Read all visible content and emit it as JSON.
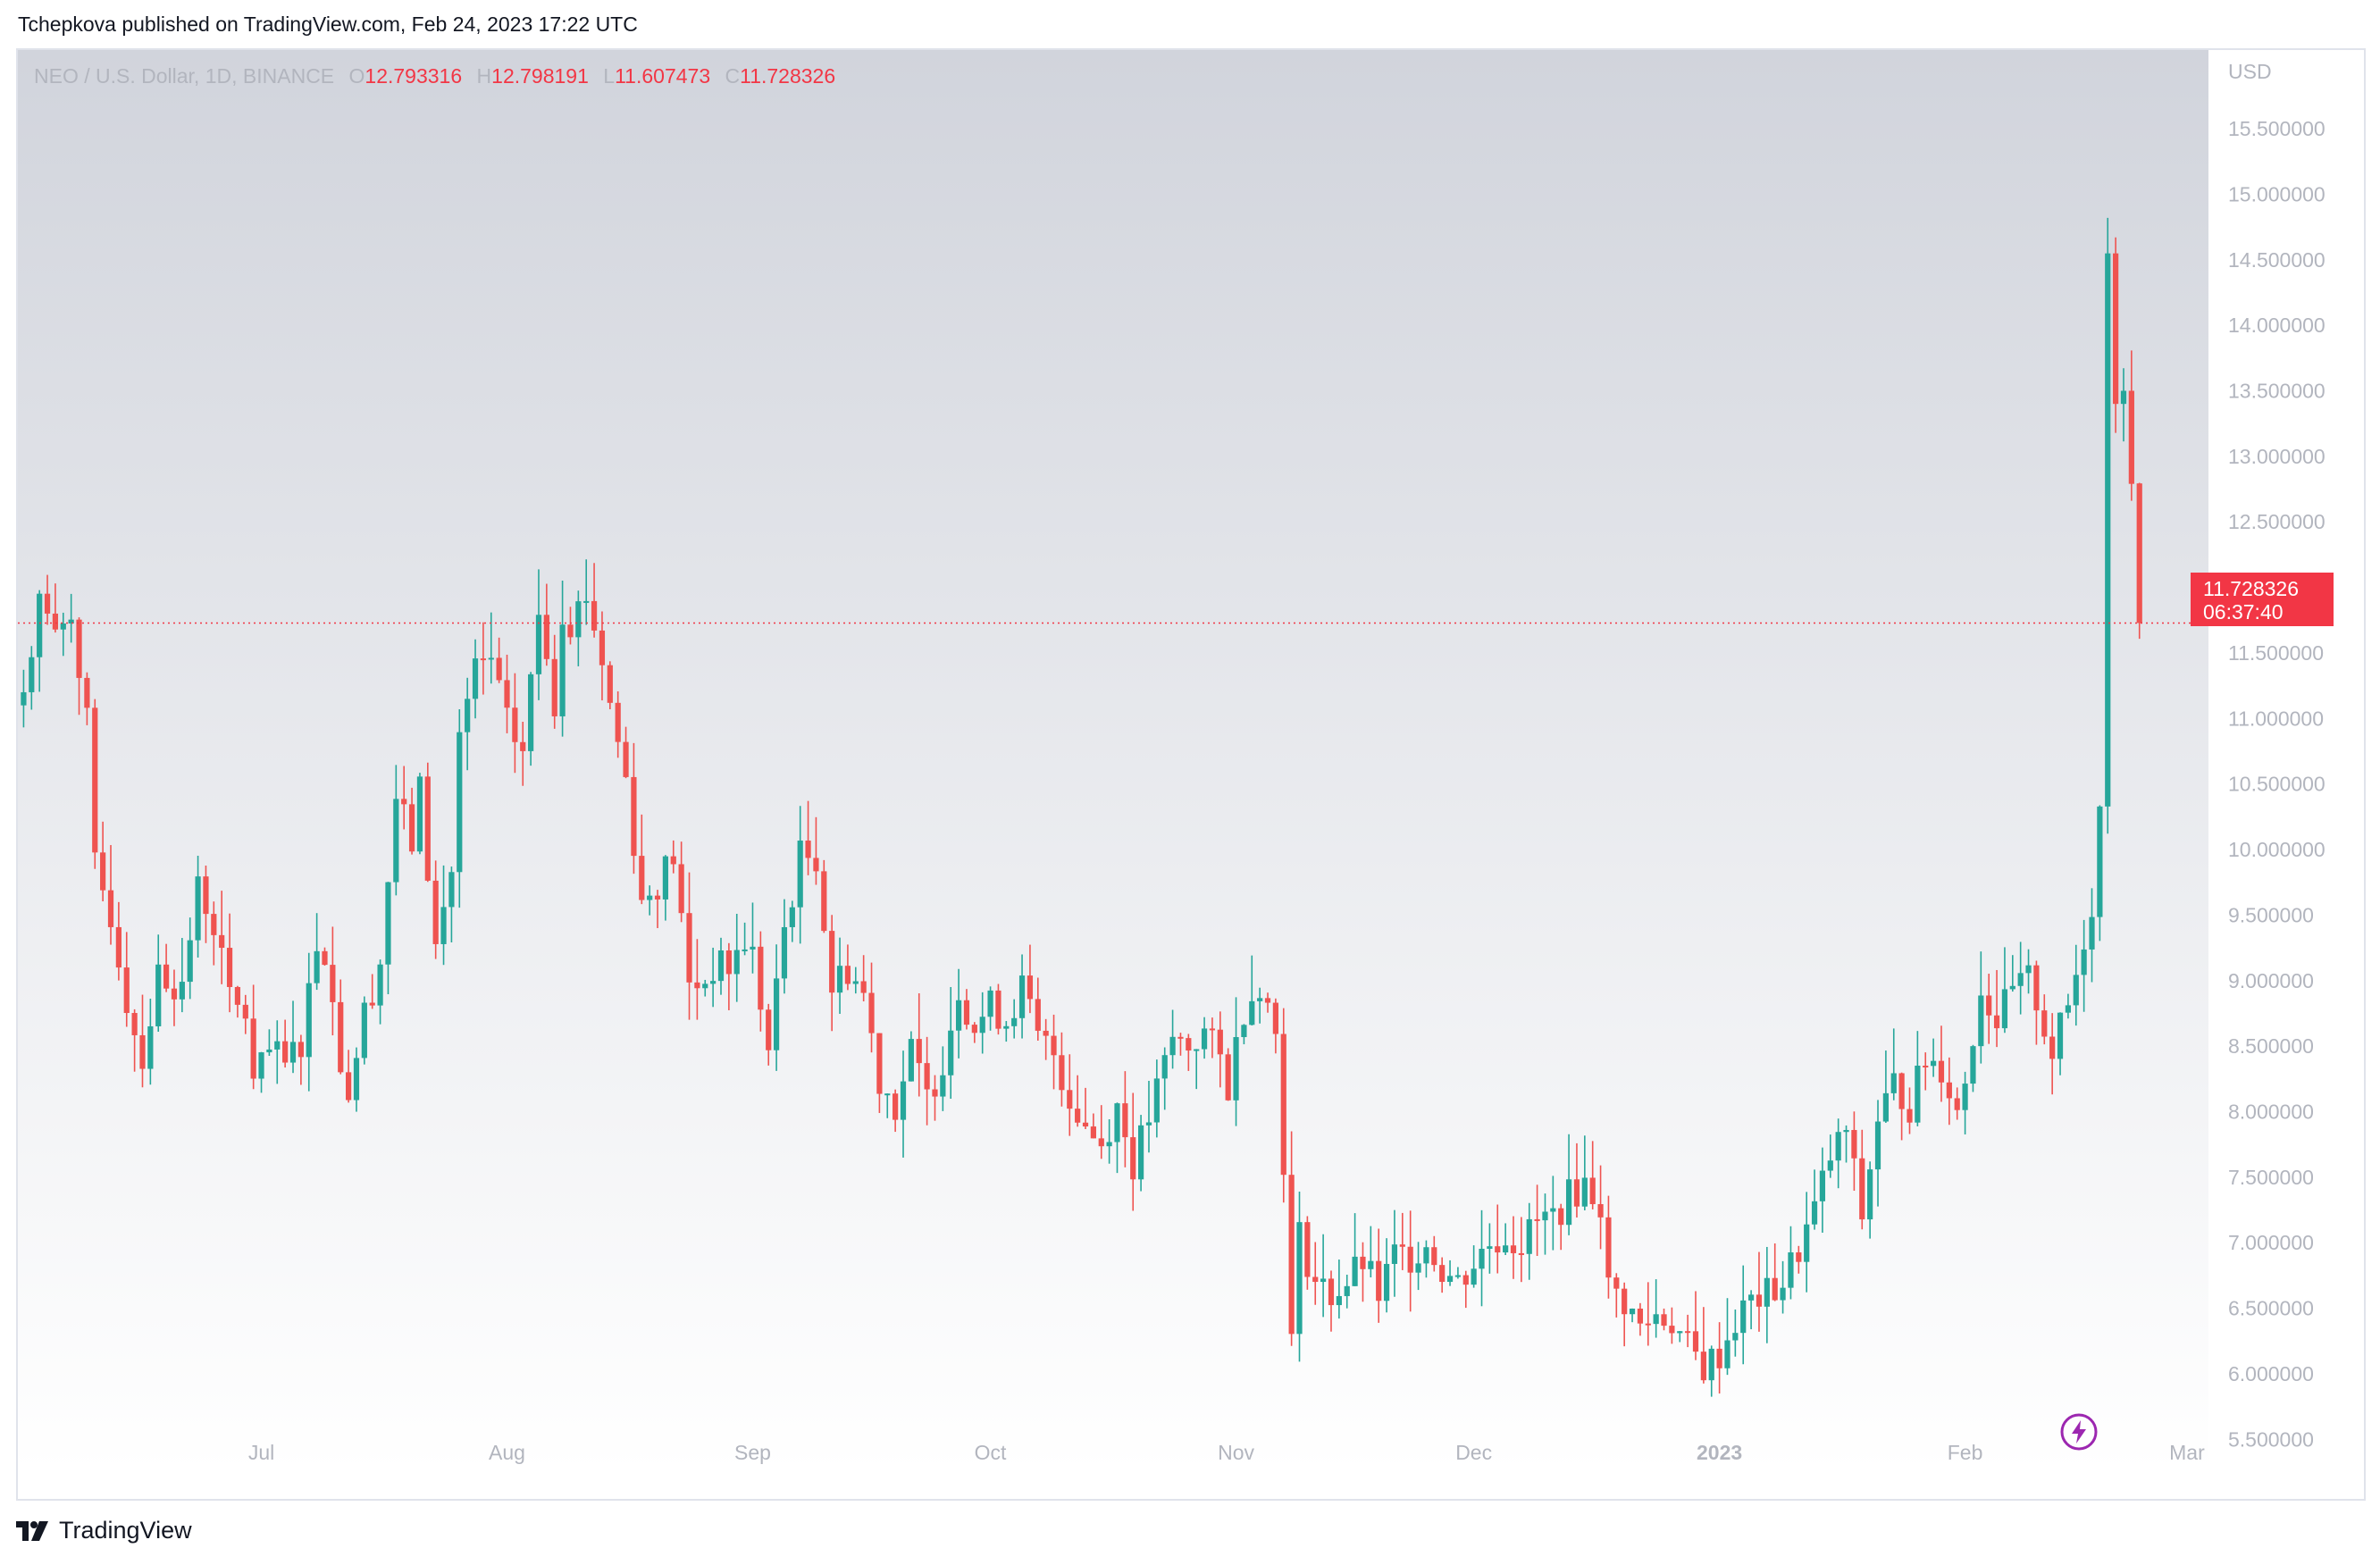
{
  "header": {
    "publish_line": "Tchepkova published on TradingView.com, Feb 24, 2023 17:22 UTC"
  },
  "legend": {
    "symbol": "NEO / U.S. Dollar, 1D, BINANCE",
    "open_label": "O",
    "open": "12.793316",
    "high_label": "H",
    "high": "12.798191",
    "low_label": "L",
    "low": "11.607473",
    "close_label": "C",
    "close": "11.728326"
  },
  "last_price": {
    "price": "11.728326",
    "countdown": "06:37:40"
  },
  "footer": {
    "brand": "TradingView"
  },
  "colors": {
    "up": "#26a69a",
    "down": "#ef5350",
    "price_line": "#f23645",
    "axis_text": "#b2b5be",
    "lightning": "#9c27b0"
  },
  "icons": {
    "lightning": "lightning-icon",
    "logo": "tradingview-logo-icon"
  },
  "chart_data": {
    "type": "candlestick",
    "currency": "USD",
    "ylim": [
      5.25,
      16.1
    ],
    "y_ticks": [
      "5.500000",
      "6.000000",
      "6.500000",
      "7.000000",
      "7.500000",
      "8.000000",
      "8.500000",
      "9.000000",
      "9.500000",
      "10.000000",
      "10.500000",
      "11.000000",
      "11.500000",
      "12.000000",
      "12.500000",
      "13.000000",
      "13.500000",
      "14.000000",
      "14.500000",
      "15.000000",
      "15.500000"
    ],
    "x_ticks": [
      {
        "label": "Jul",
        "day": 30,
        "bold": false
      },
      {
        "label": "Aug",
        "day": 61,
        "bold": false
      },
      {
        "label": "Sep",
        "day": 92,
        "bold": false
      },
      {
        "label": "Oct",
        "day": 122,
        "bold": false
      },
      {
        "label": "Nov",
        "day": 153,
        "bold": false
      },
      {
        "label": "Dec",
        "day": 183,
        "bold": false
      },
      {
        "label": "2023",
        "day": 214,
        "bold": true
      },
      {
        "label": "Feb",
        "day": 245,
        "bold": false
      },
      {
        "label": "Mar",
        "day": 273,
        "bold": false
      }
    ],
    "grid": false,
    "anchors": [
      [
        0,
        11.2
      ],
      [
        2,
        11.95
      ],
      [
        4,
        11.6
      ],
      [
        6,
        11.85
      ],
      [
        8,
        10.95
      ],
      [
        9,
        9.85
      ],
      [
        11,
        9.5
      ],
      [
        13,
        8.85
      ],
      [
        15,
        8.4
      ],
      [
        17,
        9.05
      ],
      [
        20,
        8.95
      ],
      [
        22,
        9.7
      ],
      [
        24,
        9.45
      ],
      [
        26,
        8.85
      ],
      [
        28,
        8.75
      ],
      [
        29,
        8.2
      ],
      [
        31,
        8.45
      ],
      [
        33,
        8.35
      ],
      [
        35,
        8.55
      ],
      [
        37,
        9.3
      ],
      [
        38,
        9.25
      ],
      [
        40,
        8.4
      ],
      [
        41,
        8.15
      ],
      [
        43,
        8.75
      ],
      [
        45,
        9.15
      ],
      [
        47,
        10.4
      ],
      [
        49,
        10.05
      ],
      [
        50,
        10.45
      ],
      [
        52,
        9.25
      ],
      [
        54,
        9.85
      ],
      [
        55,
        10.85
      ],
      [
        57,
        11.35
      ],
      [
        59,
        11.45
      ],
      [
        61,
        10.95
      ],
      [
        63,
        10.75
      ],
      [
        65,
        11.8
      ],
      [
        66,
        11.55
      ],
      [
        67,
        11.1
      ],
      [
        68,
        11.85
      ],
      [
        69,
        11.75
      ],
      [
        71,
        11.95
      ],
      [
        73,
        11.45
      ],
      [
        74,
        11.1
      ],
      [
        76,
        10.55
      ],
      [
        78,
        9.6
      ],
      [
        80,
        9.75
      ],
      [
        82,
        9.95
      ],
      [
        84,
        8.95
      ],
      [
        86,
        9.0
      ],
      [
        87,
        9.1
      ],
      [
        89,
        9.1
      ],
      [
        91,
        9.3
      ],
      [
        92,
        9.2
      ],
      [
        94,
        8.45
      ],
      [
        96,
        9.4
      ],
      [
        98,
        9.95
      ],
      [
        100,
        9.95
      ],
      [
        102,
        8.95
      ],
      [
        104,
        9.1
      ],
      [
        106,
        8.9
      ],
      [
        108,
        8.25
      ],
      [
        110,
        8.05
      ],
      [
        112,
        8.45
      ],
      [
        114,
        8.1
      ],
      [
        116,
        8.4
      ],
      [
        118,
        8.95
      ],
      [
        120,
        8.65
      ],
      [
        122,
        8.8
      ],
      [
        124,
        8.7
      ],
      [
        126,
        8.95
      ],
      [
        128,
        8.55
      ],
      [
        130,
        8.45
      ],
      [
        132,
        8.1
      ],
      [
        134,
        7.9
      ],
      [
        136,
        7.75
      ],
      [
        138,
        8.05
      ],
      [
        140,
        7.6
      ],
      [
        142,
        7.95
      ],
      [
        145,
        8.55
      ],
      [
        147,
        8.5
      ],
      [
        149,
        8.6
      ],
      [
        151,
        8.4
      ],
      [
        152,
        8.2
      ],
      [
        154,
        8.8
      ],
      [
        156,
        9.0
      ],
      [
        158,
        8.6
      ],
      [
        159,
        7.65
      ],
      [
        160,
        6.25
      ],
      [
        161,
        7.05
      ],
      [
        163,
        6.7
      ],
      [
        165,
        6.6
      ],
      [
        167,
        6.7
      ],
      [
        169,
        6.85
      ],
      [
        171,
        6.6
      ],
      [
        173,
        6.9
      ],
      [
        175,
        6.9
      ],
      [
        177,
        7.0
      ],
      [
        179,
        6.8
      ],
      [
        181,
        6.7
      ],
      [
        183,
        6.85
      ],
      [
        185,
        7.0
      ],
      [
        187,
        7.05
      ],
      [
        189,
        7.0
      ],
      [
        191,
        7.15
      ],
      [
        193,
        7.2
      ],
      [
        195,
        7.35
      ],
      [
        197,
        7.45
      ],
      [
        199,
        7.3
      ],
      [
        200,
        6.65
      ],
      [
        202,
        6.55
      ],
      [
        204,
        6.35
      ],
      [
        206,
        6.45
      ],
      [
        208,
        6.4
      ],
      [
        210,
        6.2
      ],
      [
        212,
        6.05
      ],
      [
        214,
        6.15
      ],
      [
        216,
        6.4
      ],
      [
        218,
        6.55
      ],
      [
        220,
        6.6
      ],
      [
        222,
        6.7
      ],
      [
        224,
        6.95
      ],
      [
        226,
        7.25
      ],
      [
        228,
        7.65
      ],
      [
        230,
        7.85
      ],
      [
        232,
        7.2
      ],
      [
        234,
        7.95
      ],
      [
        236,
        8.2
      ],
      [
        238,
        8.05
      ],
      [
        240,
        8.4
      ],
      [
        242,
        8.35
      ],
      [
        244,
        8.0
      ],
      [
        245,
        8.25
      ],
      [
        247,
        8.95
      ],
      [
        249,
        8.7
      ],
      [
        251,
        8.9
      ],
      [
        253,
        9.0
      ],
      [
        254,
        8.85
      ],
      [
        256,
        8.45
      ],
      [
        258,
        8.8
      ],
      [
        259,
        9.05
      ],
      [
        261,
        9.6
      ],
      [
        262,
        10.3
      ],
      [
        263,
        14.65
      ],
      [
        264,
        13.4
      ],
      [
        265,
        13.5
      ],
      [
        266,
        12.79
      ],
      [
        267,
        11.73
      ]
    ],
    "last_price": 11.728326
  }
}
